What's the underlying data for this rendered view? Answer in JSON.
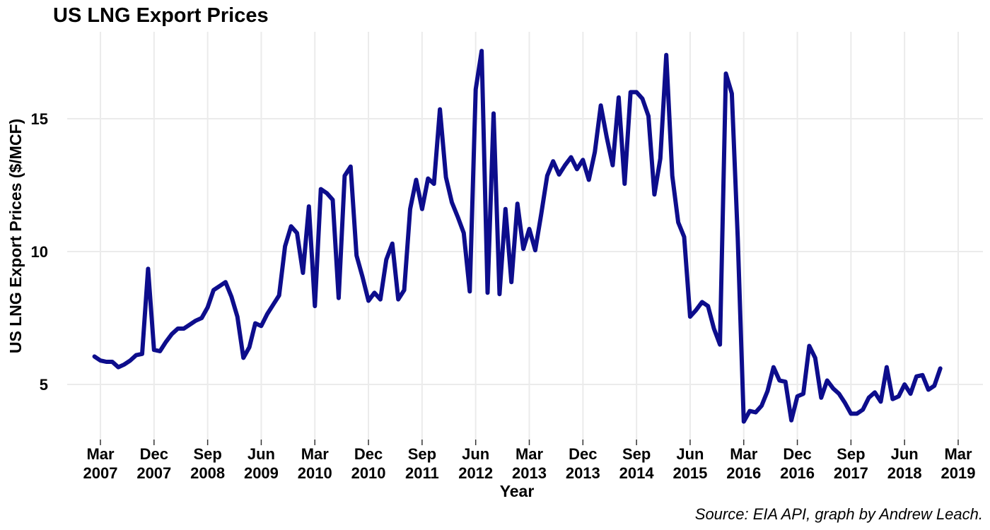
{
  "chart_data": {
    "type": "line",
    "title": "US LNG Export Prices",
    "xlabel": "Year",
    "ylabel": "US LNG Export Prices ($/MCF)",
    "caption": "Source: EIA API, graph by Andrew Leach.",
    "ylim": [
      3.2,
      17.9
    ],
    "xlim": [
      "2007-01",
      "2019-05"
    ],
    "grid": true,
    "line_color": "#0d0d8c",
    "y_ticks": [
      5,
      10,
      15
    ],
    "x_ticks": [
      {
        "month": "Mar",
        "year": "2007",
        "date": "2007-03"
      },
      {
        "month": "Dec",
        "year": "2007",
        "date": "2007-12"
      },
      {
        "month": "Sep",
        "year": "2008",
        "date": "2008-09"
      },
      {
        "month": "Jun",
        "year": "2009",
        "date": "2009-06"
      },
      {
        "month": "Mar",
        "year": "2010",
        "date": "2010-03"
      },
      {
        "month": "Dec",
        "year": "2010",
        "date": "2010-12"
      },
      {
        "month": "Sep",
        "year": "2011",
        "date": "2011-09"
      },
      {
        "month": "Jun",
        "year": "2012",
        "date": "2012-06"
      },
      {
        "month": "Mar",
        "year": "2013",
        "date": "2013-03"
      },
      {
        "month": "Dec",
        "year": "2013",
        "date": "2013-12"
      },
      {
        "month": "Sep",
        "year": "2014",
        "date": "2014-09"
      },
      {
        "month": "Jun",
        "year": "2015",
        "date": "2015-06"
      },
      {
        "month": "Mar",
        "year": "2016",
        "date": "2016-03"
      },
      {
        "month": "Dec",
        "year": "2016",
        "date": "2016-12"
      },
      {
        "month": "Sep",
        "year": "2017",
        "date": "2017-09"
      },
      {
        "month": "Jun",
        "year": "2018",
        "date": "2018-06"
      },
      {
        "month": "Mar",
        "year": "2019",
        "date": "2019-03"
      }
    ],
    "series": [
      {
        "points": [
          [
            "2007-02",
            6.05
          ],
          [
            "2007-03",
            5.9
          ],
          [
            "2007-04",
            5.85
          ],
          [
            "2007-05",
            5.85
          ],
          [
            "2007-06",
            5.65
          ],
          [
            "2007-07",
            5.75
          ],
          [
            "2007-08",
            5.9
          ],
          [
            "2007-09",
            6.1
          ],
          [
            "2007-10",
            6.15
          ],
          [
            "2007-11",
            9.35
          ],
          [
            "2007-12",
            6.3
          ],
          [
            "2008-01",
            6.25
          ],
          [
            "2008-02",
            6.6
          ],
          [
            "2008-03",
            6.9
          ],
          [
            "2008-04",
            7.1
          ],
          [
            "2008-05",
            7.1
          ],
          [
            "2008-06",
            7.25
          ],
          [
            "2008-07",
            7.4
          ],
          [
            "2008-08",
            7.5
          ],
          [
            "2008-09",
            7.9
          ],
          [
            "2008-10",
            8.55
          ],
          [
            "2008-11",
            8.7
          ],
          [
            "2008-12",
            8.85
          ],
          [
            "2009-01",
            8.3
          ],
          [
            "2009-02",
            7.55
          ],
          [
            "2009-03",
            6.0
          ],
          [
            "2009-04",
            6.4
          ],
          [
            "2009-05",
            7.3
          ],
          [
            "2009-06",
            7.2
          ],
          [
            "2009-07",
            7.65
          ],
          [
            "2009-08",
            8.0
          ],
          [
            "2009-09",
            8.35
          ],
          [
            "2009-10",
            10.2
          ],
          [
            "2009-11",
            10.95
          ],
          [
            "2009-12",
            10.7
          ],
          [
            "2010-01",
            9.2
          ],
          [
            "2010-02",
            11.7
          ],
          [
            "2010-03",
            7.95
          ],
          [
            "2010-04",
            12.35
          ],
          [
            "2010-05",
            12.2
          ],
          [
            "2010-06",
            11.95
          ],
          [
            "2010-07",
            8.25
          ],
          [
            "2010-08",
            12.85
          ],
          [
            "2010-09",
            13.2
          ],
          [
            "2010-10",
            9.85
          ],
          [
            "2010-11",
            9.05
          ],
          [
            "2010-12",
            8.15
          ],
          [
            "2011-01",
            8.45
          ],
          [
            "2011-02",
            8.2
          ],
          [
            "2011-03",
            9.7
          ],
          [
            "2011-04",
            10.3
          ],
          [
            "2011-05",
            8.2
          ],
          [
            "2011-06",
            8.55
          ],
          [
            "2011-07",
            11.6
          ],
          [
            "2011-08",
            12.7
          ],
          [
            "2011-09",
            11.6
          ],
          [
            "2011-10",
            12.75
          ],
          [
            "2011-11",
            12.55
          ],
          [
            "2011-12",
            15.35
          ],
          [
            "2012-01",
            12.8
          ],
          [
            "2012-02",
            11.85
          ],
          [
            "2012-03",
            11.3
          ],
          [
            "2012-04",
            10.7
          ],
          [
            "2012-05",
            8.5
          ],
          [
            "2012-06",
            16.1
          ],
          [
            "2012-07",
            17.55
          ],
          [
            "2012-08",
            8.45
          ],
          [
            "2012-09",
            15.2
          ],
          [
            "2012-10",
            8.4
          ],
          [
            "2012-11",
            11.6
          ],
          [
            "2012-12",
            8.85
          ],
          [
            "2013-01",
            11.8
          ],
          [
            "2013-02",
            10.1
          ],
          [
            "2013-03",
            10.85
          ],
          [
            "2013-04",
            10.05
          ],
          [
            "2013-05",
            11.4
          ],
          [
            "2013-06",
            12.85
          ],
          [
            "2013-07",
            13.4
          ],
          [
            "2013-08",
            12.9
          ],
          [
            "2013-09",
            13.25
          ],
          [
            "2013-10",
            13.55
          ],
          [
            "2013-11",
            13.1
          ],
          [
            "2013-12",
            13.45
          ],
          [
            "2014-01",
            12.7
          ],
          [
            "2014-02",
            13.75
          ],
          [
            "2014-03",
            15.5
          ],
          [
            "2014-04",
            14.3
          ],
          [
            "2014-05",
            13.25
          ],
          [
            "2014-06",
            15.8
          ],
          [
            "2014-07",
            12.55
          ],
          [
            "2014-08",
            16.0
          ],
          [
            "2014-09",
            16.0
          ],
          [
            "2014-10",
            15.75
          ],
          [
            "2014-11",
            15.1
          ],
          [
            "2014-12",
            12.15
          ],
          [
            "2015-01",
            13.5
          ],
          [
            "2015-02",
            17.4
          ],
          [
            "2015-03",
            12.85
          ],
          [
            "2015-04",
            11.1
          ],
          [
            "2015-05",
            10.55
          ],
          [
            "2015-06",
            7.55
          ],
          [
            "2015-07",
            7.8
          ],
          [
            "2015-08",
            8.1
          ],
          [
            "2015-09",
            7.95
          ],
          [
            "2015-10",
            7.1
          ],
          [
            "2015-11",
            6.5
          ],
          [
            "2015-12",
            16.7
          ],
          [
            "2016-01",
            15.95
          ],
          [
            "2016-02",
            10.5
          ],
          [
            "2016-03",
            3.6
          ],
          [
            "2016-04",
            4.0
          ],
          [
            "2016-05",
            3.95
          ],
          [
            "2016-06",
            4.2
          ],
          [
            "2016-07",
            4.75
          ],
          [
            "2016-08",
            5.65
          ],
          [
            "2016-09",
            5.15
          ],
          [
            "2016-10",
            5.1
          ],
          [
            "2016-11",
            3.65
          ],
          [
            "2016-12",
            4.55
          ],
          [
            "2017-01",
            4.65
          ],
          [
            "2017-02",
            6.45
          ],
          [
            "2017-03",
            6.0
          ],
          [
            "2017-04",
            4.5
          ],
          [
            "2017-05",
            5.15
          ],
          [
            "2017-06",
            4.85
          ],
          [
            "2017-07",
            4.65
          ],
          [
            "2017-08",
            4.3
          ],
          [
            "2017-09",
            3.9
          ],
          [
            "2017-10",
            3.9
          ],
          [
            "2017-11",
            4.05
          ],
          [
            "2017-12",
            4.5
          ],
          [
            "2018-01",
            4.7
          ],
          [
            "2018-02",
            4.35
          ],
          [
            "2018-03",
            5.65
          ],
          [
            "2018-04",
            4.45
          ],
          [
            "2018-05",
            4.55
          ],
          [
            "2018-06",
            5.0
          ],
          [
            "2018-07",
            4.65
          ],
          [
            "2018-08",
            5.3
          ],
          [
            "2018-09",
            5.35
          ],
          [
            "2018-10",
            4.8
          ],
          [
            "2018-11",
            4.95
          ],
          [
            "2018-12",
            5.6
          ]
        ]
      }
    ]
  }
}
